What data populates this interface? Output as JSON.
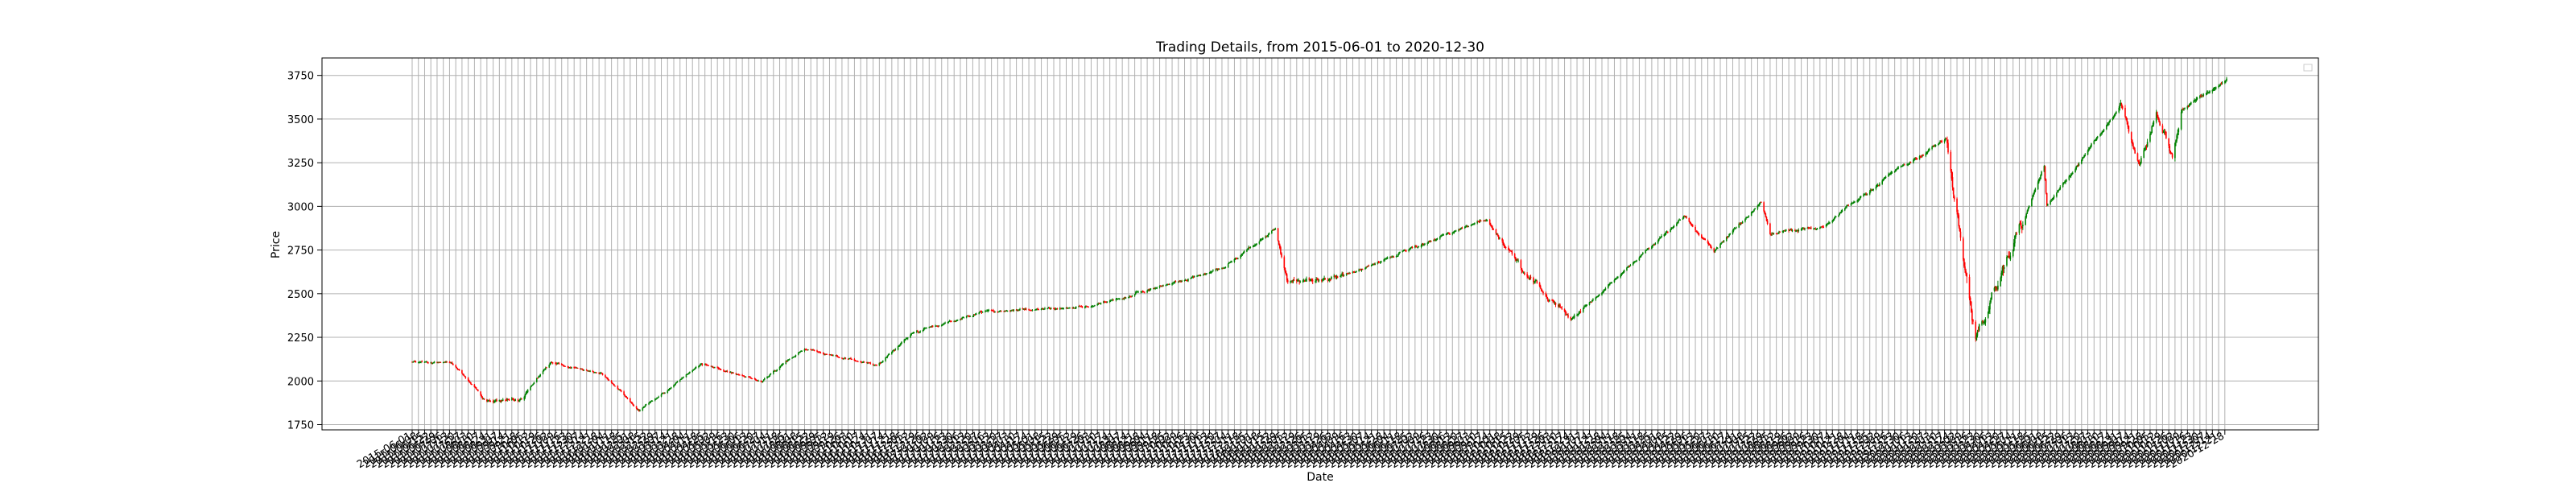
{
  "chart_data": {
    "type": "candlestick",
    "title": "Trading Details, from 2015-06-01 to 2020-12-30",
    "xlabel": "Date",
    "ylabel": "Price",
    "date_range": [
      "2015-06-01",
      "2020-12-30"
    ],
    "ylim": [
      1720,
      3850
    ],
    "yticks": [
      1750,
      2000,
      2250,
      2500,
      2750,
      3000,
      3250,
      3500,
      3750
    ],
    "grid": true,
    "legend": "top-right (empty)",
    "up_color": "#008000",
    "down_color": "#ff0000",
    "close_anchors": [
      {
        "date": "2015-06-01",
        "close": 2110
      },
      {
        "date": "2015-07-15",
        "close": 2105
      },
      {
        "date": "2015-08-24",
        "close": 1890
      },
      {
        "date": "2015-09-29",
        "close": 1885
      },
      {
        "date": "2015-11-03",
        "close": 2105
      },
      {
        "date": "2015-12-31",
        "close": 2045
      },
      {
        "date": "2016-02-11",
        "close": 1830
      },
      {
        "date": "2016-04-20",
        "close": 2100
      },
      {
        "date": "2016-06-27",
        "close": 2000
      },
      {
        "date": "2016-08-15",
        "close": 2190
      },
      {
        "date": "2016-11-04",
        "close": 2085
      },
      {
        "date": "2016-12-13",
        "close": 2270
      },
      {
        "date": "2017-03-01",
        "close": 2395
      },
      {
        "date": "2017-06-30",
        "close": 2425
      },
      {
        "date": "2017-11-30",
        "close": 2650
      },
      {
        "date": "2018-01-26",
        "close": 2875
      },
      {
        "date": "2018-02-08",
        "close": 2580
      },
      {
        "date": "2018-04-02",
        "close": 2580
      },
      {
        "date": "2018-09-20",
        "close": 2930
      },
      {
        "date": "2018-10-29",
        "close": 2640
      },
      {
        "date": "2018-12-24",
        "close": 2350
      },
      {
        "date": "2019-04-30",
        "close": 2945
      },
      {
        "date": "2019-06-03",
        "close": 2745
      },
      {
        "date": "2019-07-26",
        "close": 3025
      },
      {
        "date": "2019-08-05",
        "close": 2845
      },
      {
        "date": "2019-10-02",
        "close": 2885
      },
      {
        "date": "2019-12-31",
        "close": 3230
      },
      {
        "date": "2020-02-19",
        "close": 3385
      },
      {
        "date": "2020-03-23",
        "close": 2235
      },
      {
        "date": "2020-06-08",
        "close": 3230
      },
      {
        "date": "2020-06-11",
        "close": 3000
      },
      {
        "date": "2020-09-02",
        "close": 3580
      },
      {
        "date": "2020-09-23",
        "close": 3235
      },
      {
        "date": "2020-10-12",
        "close": 3535
      },
      {
        "date": "2020-10-30",
        "close": 3270
      },
      {
        "date": "2020-11-09",
        "close": 3550
      },
      {
        "date": "2020-12-30",
        "close": 3735
      }
    ]
  }
}
